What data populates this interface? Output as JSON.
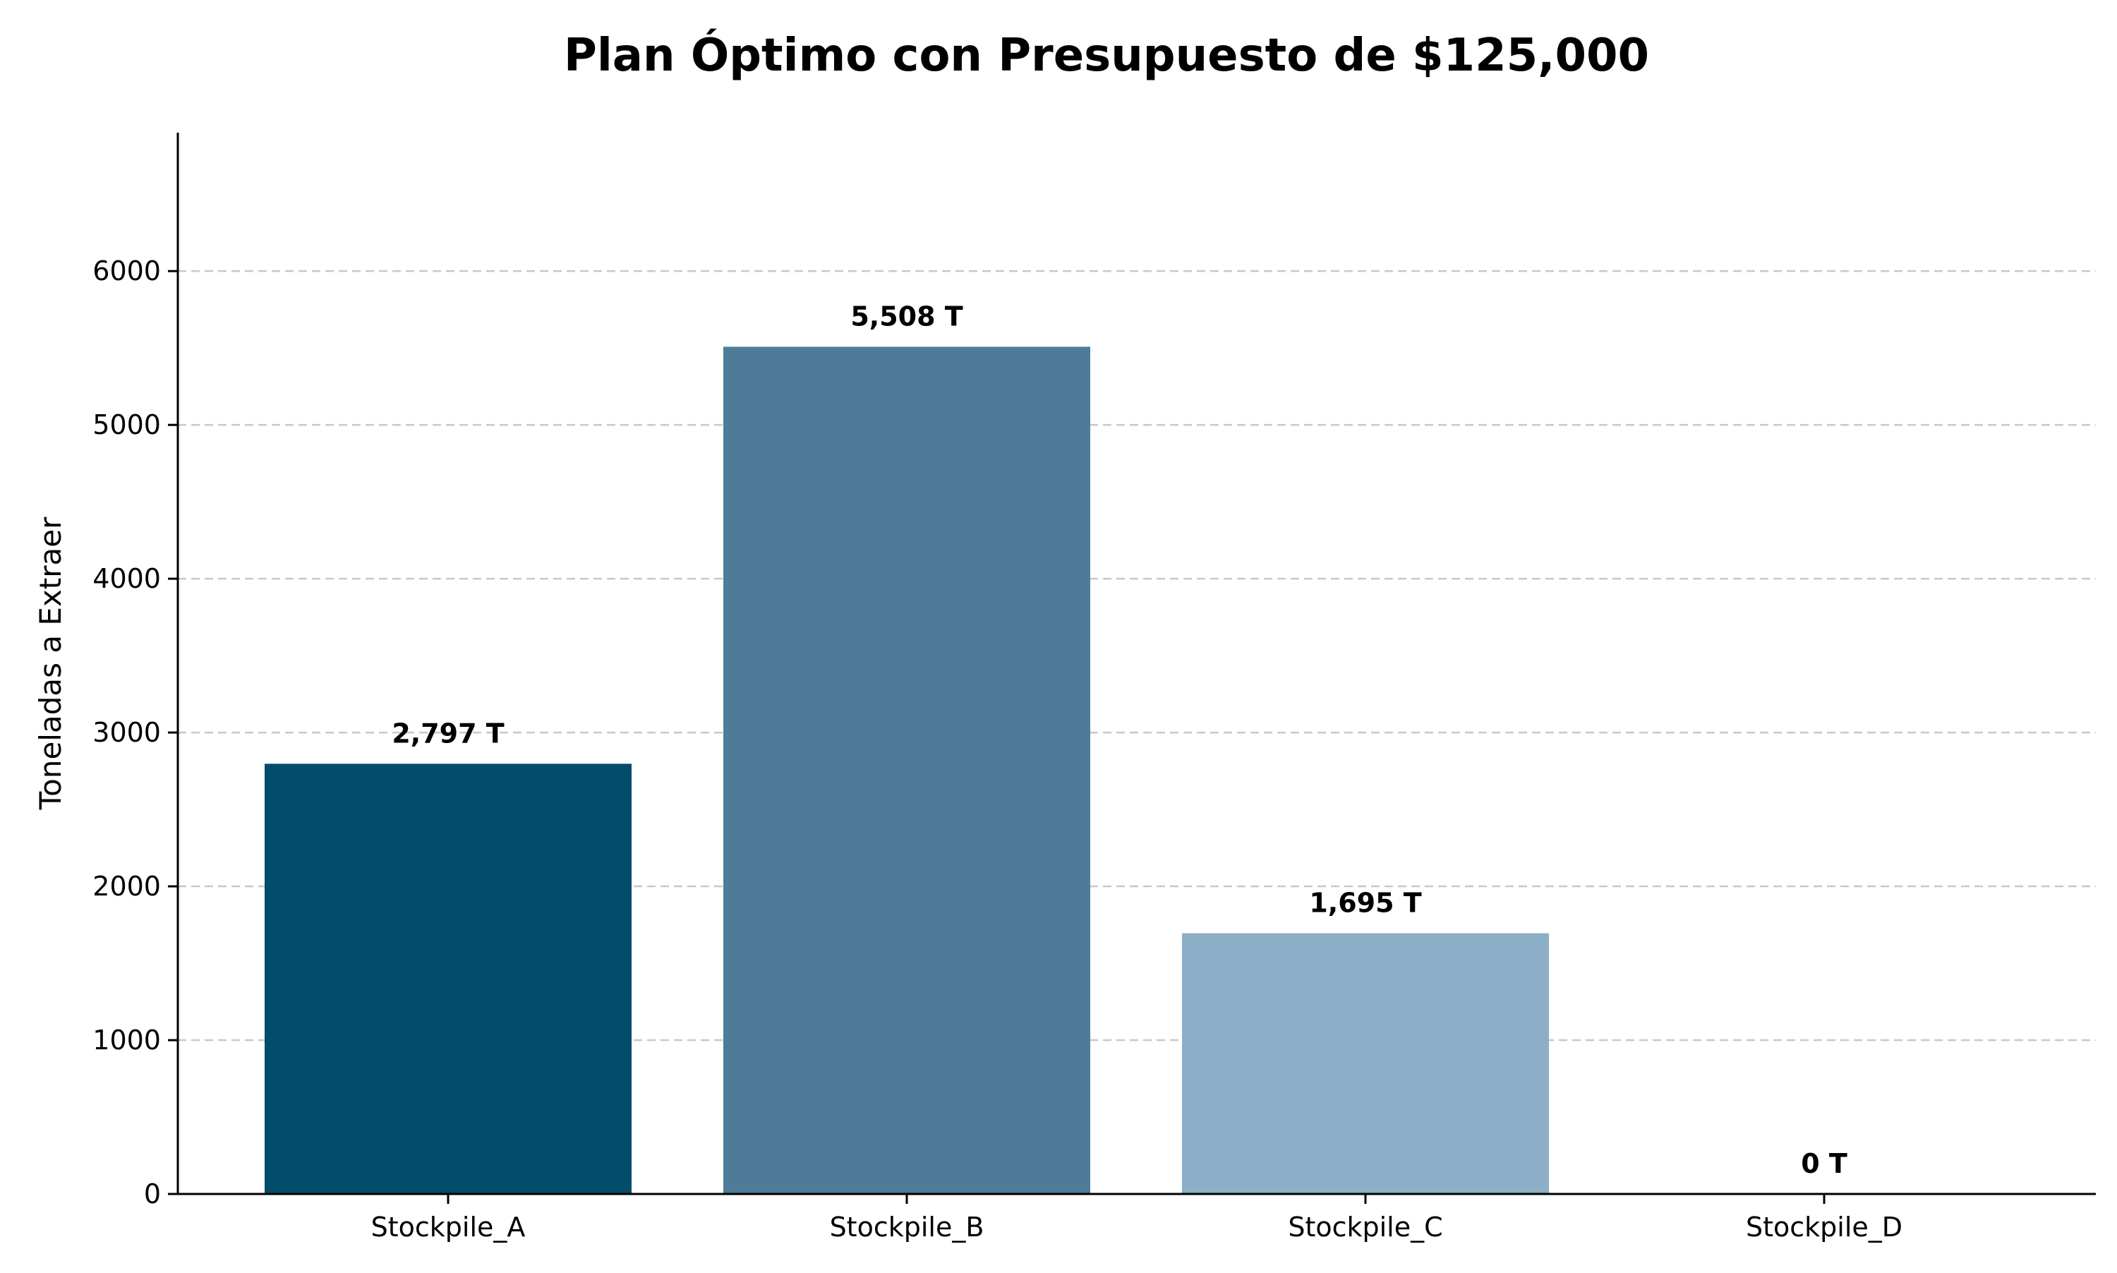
{
  "chart_data": {
    "type": "bar",
    "title": "Plan Óptimo con Presupuesto de $125,000",
    "xlabel": "",
    "ylabel": "Toneladas a Extraer",
    "categories": [
      "Stockpile_A",
      "Stockpile_B",
      "Stockpile_C",
      "Stockpile_D"
    ],
    "values": [
      2797,
      5508,
      1695,
      0
    ],
    "data_labels": [
      "2,797 T",
      "5,508 T",
      "1,695 T",
      "0 T"
    ],
    "colors": [
      "#034d6c",
      "#4e7c98",
      "#8caec6",
      "#c9d9e6"
    ],
    "yticks": [
      0,
      1000,
      2000,
      3000,
      4000,
      5000,
      6000
    ],
    "ylim": [
      0,
      6900
    ],
    "grid": "horizontal dashed",
    "legend": "none"
  }
}
